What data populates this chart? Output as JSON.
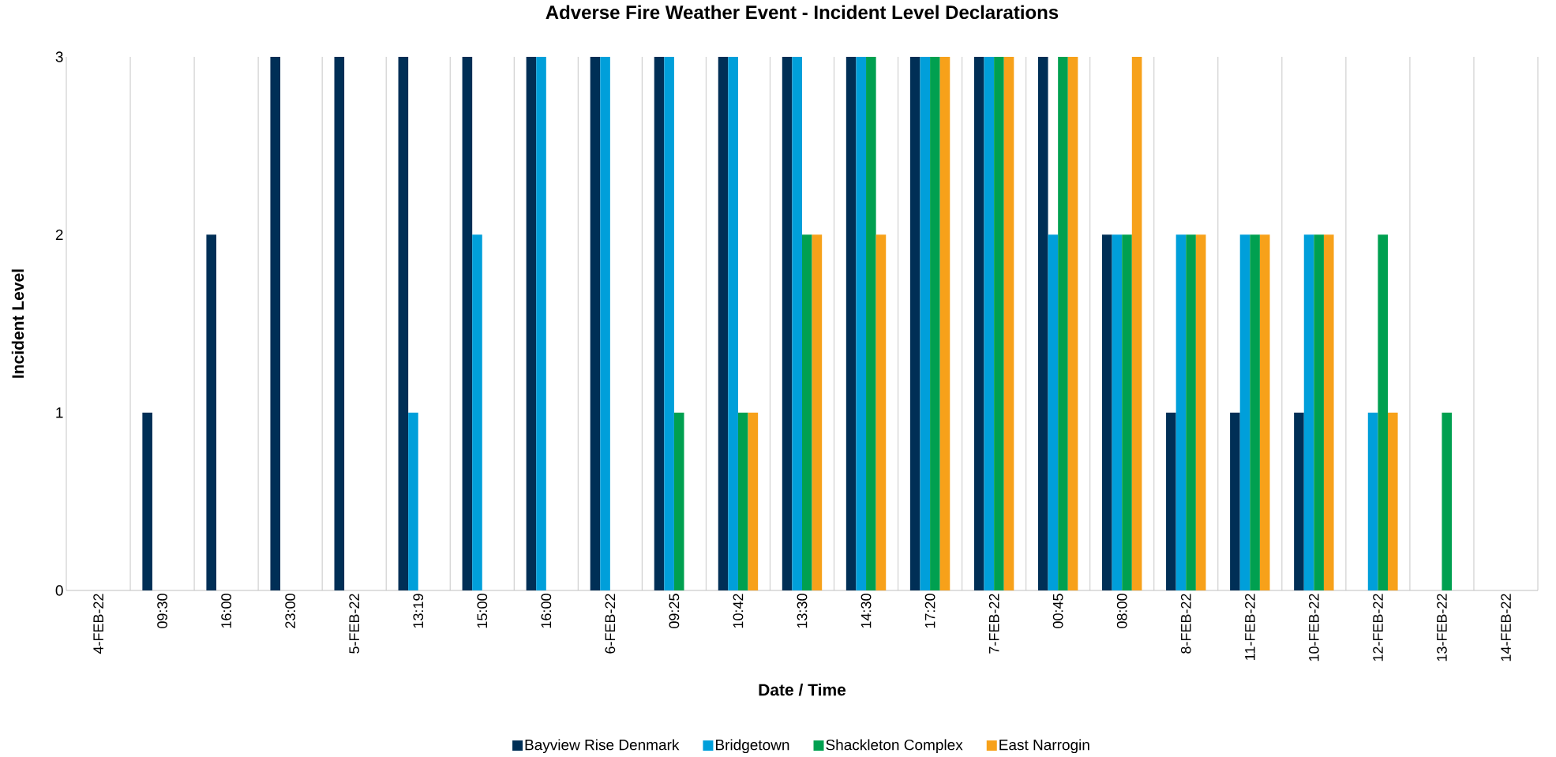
{
  "chart_data": {
    "type": "bar",
    "title": "Adverse Fire Weather Event - Incident Level Declarations",
    "xlabel": "Date / Time",
    "ylabel": "Incident Level",
    "categories": [
      "4-FEB-22",
      "09:30",
      "16:00",
      "23:00",
      "5-FEB-22",
      "13:19",
      "15:00",
      "16:00",
      "6-FEB-22",
      "09:25",
      "10:42",
      "13:30",
      "14:30",
      "17:20",
      "7-FEB-22",
      "00:45",
      "08:00",
      "8-FEB-22",
      "11-FEB-22",
      "10-FEB-22",
      "12-FEB-22",
      "13-FEB-22",
      "14-FEB-22"
    ],
    "series": [
      {
        "name": "Bayview Rise Denmark",
        "color": "#002f56",
        "values": [
          0,
          1,
          2,
          3,
          3,
          3,
          3,
          3,
          3,
          3,
          3,
          3,
          3,
          3,
          3,
          3,
          2,
          1,
          1,
          1,
          0,
          0,
          0
        ]
      },
      {
        "name": "Bridgetown",
        "color": "#009fda",
        "values": [
          0,
          0,
          0,
          0,
          0,
          1,
          2,
          3,
          3,
          3,
          3,
          3,
          3,
          3,
          3,
          2,
          2,
          2,
          2,
          2,
          1,
          0,
          0
        ]
      },
      {
        "name": "Shackleton Complex",
        "color": "#00a050",
        "values": [
          0,
          0,
          0,
          0,
          0,
          0,
          0,
          0,
          0,
          1,
          1,
          2,
          3,
          3,
          3,
          3,
          2,
          2,
          2,
          2,
          2,
          1,
          0
        ]
      },
      {
        "name": "East Narrogin",
        "color": "#f7a11a",
        "values": [
          0,
          0,
          0,
          0,
          0,
          0,
          0,
          0,
          0,
          0,
          1,
          2,
          2,
          3,
          3,
          3,
          3,
          2,
          2,
          2,
          1,
          0,
          0
        ]
      }
    ],
    "ylim": [
      0,
      3
    ],
    "yticks": [
      0,
      1,
      2,
      3
    ],
    "grid": "x",
    "legend": "bottom"
  }
}
